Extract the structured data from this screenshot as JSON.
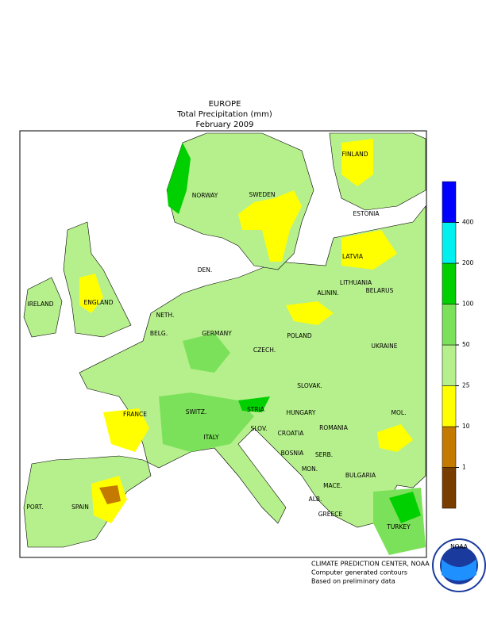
{
  "header": {
    "lines": [
      "EUROPE",
      "Total Precipitation (mm)",
      "February 2009"
    ]
  },
  "legend": {
    "boundaries": [
      1,
      10,
      25,
      50,
      100,
      200,
      400
    ],
    "colors": [
      "#7a3d00",
      "#c47a00",
      "#ffff00",
      "#b6f08c",
      "#7ce15a",
      "#00d000",
      "#00f0f0",
      "#0000ff"
    ]
  },
  "labels": [
    "NORWAY",
    "SWEDEN",
    "FINLAND",
    "ESTONIA",
    "LATVIA",
    "DEN.",
    "LITHUANIA",
    "ALININ.",
    "BELARUS",
    "IRELAND",
    "ENGLAND",
    "NETH.",
    "BELG.",
    "GERMANY",
    "POLAND",
    "CZECH.",
    "SLOVAK.",
    "UKRAINE",
    "FRANCE",
    "SWITZ.",
    "STRIA",
    "HUNGARY",
    "MOL.",
    "ROMANIA",
    "SLOV.",
    "CROATIA",
    "ITALY",
    "BOSNIA",
    "SERB.",
    "BULGARIA",
    "MON.",
    "MACE.",
    "ALB.",
    "PORT.",
    "SPAIN",
    "GREECE",
    "TURKEY"
  ],
  "footer": {
    "lines": [
      "CLIMATE PREDICTION CENTER, NOAA",
      "Computer generated contours",
      "Based on preliminary data"
    ],
    "logo": "NOAA"
  }
}
